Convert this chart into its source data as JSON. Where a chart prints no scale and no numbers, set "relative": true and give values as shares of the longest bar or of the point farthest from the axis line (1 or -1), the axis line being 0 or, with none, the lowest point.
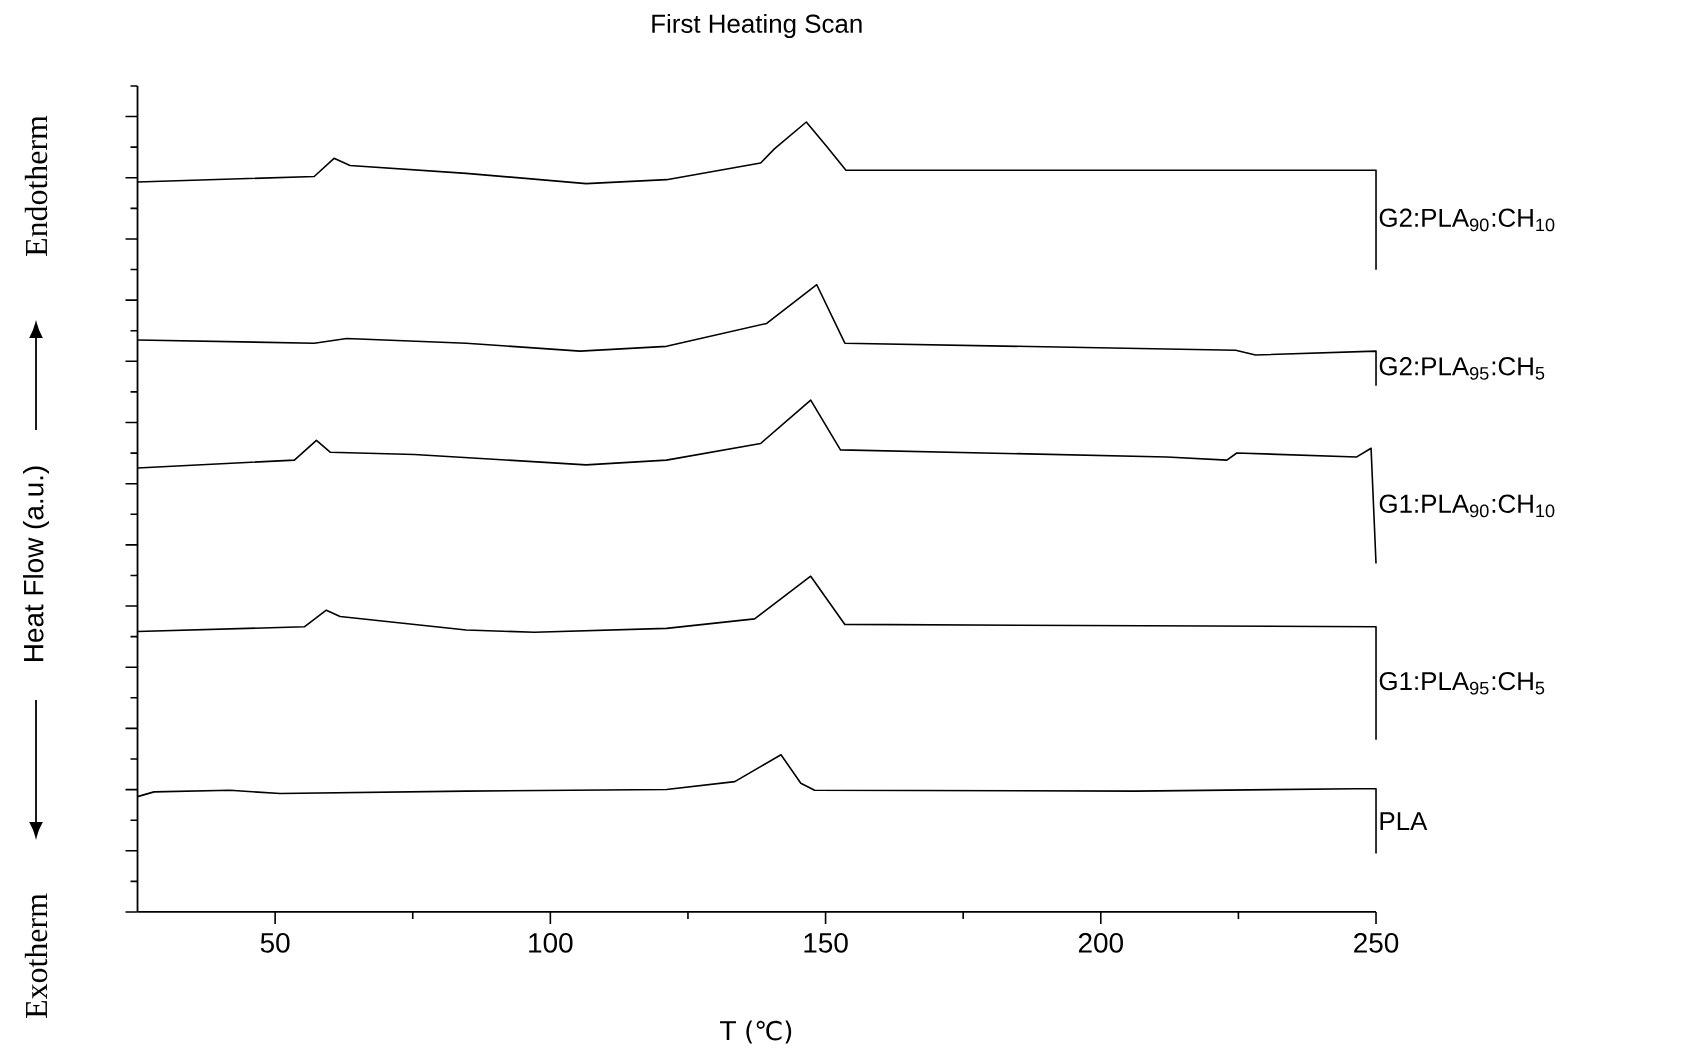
{
  "chart_data": {
    "type": "line",
    "title": "First Heating Scan",
    "xlabel": "T (℃)",
    "ylabel": "Heat Flow (a.u.)",
    "relative": true,
    "tick_labels": "x",
    "xlim": [
      25,
      250
    ],
    "xticks": [
      50,
      100,
      150,
      200,
      250
    ],
    "grid": false,
    "marker": "none",
    "line_style": "solid",
    "annotations": [
      "Exotherm",
      "Endotherm"
    ],
    "series": [
      {
        "name": "G2:PLA$_{90}$:CH$_{10}$",
        "color": "#000000",
        "x": [
          25,
          57.1,
          60.7,
          63.6,
          84.7,
          106.5,
          121.1,
          138.2,
          140.7,
          146.5,
          150.1,
          153.7,
          250,
          250
        ],
        "values": [
          0.924,
          0.931,
          0.954,
          0.945,
          0.935,
          0.922,
          0.927,
          0.948,
          0.966,
          1.0,
          0.97,
          0.939,
          0.939,
          0.813
        ]
      },
      {
        "name": "G2:PLA$_{95}$:CH$_{5}$",
        "color": "#000000",
        "x": [
          25,
          57.1,
          63.0,
          84.7,
          105.4,
          121.1,
          139.3,
          148.4,
          153.5,
          224.5,
          228.1,
          250,
          250
        ],
        "values": [
          0.724,
          0.72,
          0.726,
          0.72,
          0.71,
          0.716,
          0.745,
          0.794,
          0.72,
          0.711,
          0.705,
          0.71,
          0.666
        ]
      },
      {
        "name": "G1:PLA$_{90}$:CH$_{10}$",
        "color": "#000000",
        "x": [
          25,
          53.5,
          57.5,
          60.0,
          75.3,
          106.5,
          121.1,
          138.2,
          147.3,
          152.7,
          212.0,
          222.9,
          224.7,
          246.5,
          249.1,
          250
        ],
        "values": [
          0.562,
          0.572,
          0.597,
          0.582,
          0.579,
          0.566,
          0.572,
          0.593,
          0.648,
          0.585,
          0.576,
          0.572,
          0.581,
          0.576,
          0.587,
          0.441
        ]
      },
      {
        "name": "G1:PLA$_{95}$:CH$_{5}$",
        "color": "#000000",
        "x": [
          25,
          55.3,
          59.3,
          61.8,
          84.7,
          97.1,
          121.1,
          137.1,
          147.3,
          153.5,
          250,
          250
        ],
        "values": [
          0.355,
          0.361,
          0.382,
          0.374,
          0.357,
          0.354,
          0.359,
          0.371,
          0.425,
          0.364,
          0.361,
          0.218
        ]
      },
      {
        "name": "PLA",
        "color": "#000000",
        "x": [
          25,
          28.0,
          41.8,
          50.9,
          84.7,
          121.1,
          133.5,
          141.9,
          145.5,
          148.0,
          206.3,
          246.3,
          250,
          250
        ],
        "values": [
          0.146,
          0.152,
          0.154,
          0.15,
          0.153,
          0.155,
          0.165,
          0.199,
          0.163,
          0.154,
          0.153,
          0.156,
          0.156,
          0.074
        ]
      }
    ]
  }
}
